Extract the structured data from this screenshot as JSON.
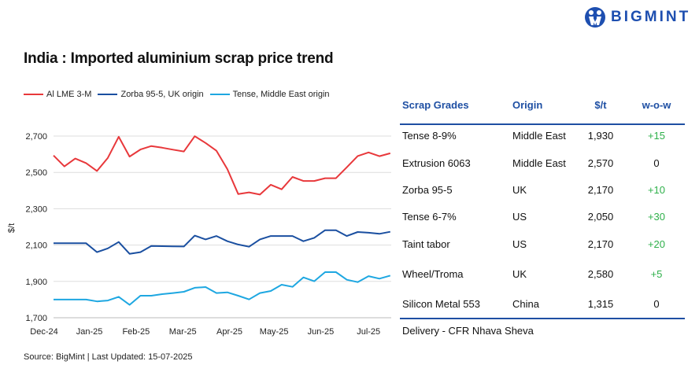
{
  "logo": {
    "text": "BIGMINT",
    "color": "#1e4fb0"
  },
  "title": "India : Imported aluminium scrap price trend",
  "chart_data": {
    "type": "line",
    "ylabel": "$/t",
    "xlabel": "",
    "ylim": [
      1700,
      2700
    ],
    "y_ticks": [
      "1,700",
      "1,900",
      "2,100",
      "2,300",
      "2,500",
      "2,700"
    ],
    "x_ticks": [
      "Dec-24",
      "Jan-25",
      "Feb-25",
      "Mar-25",
      "Apr-25",
      "May-25",
      "Jun-25",
      "Jul-25"
    ],
    "grid": "horizontal",
    "legend": "top-left",
    "series": [
      {
        "name": "Al LME 3-M",
        "color": "#e8383b",
        "values": [
          2593,
          2533,
          2576,
          2551,
          2508,
          2580,
          2696,
          2587,
          2626,
          2645,
          2636,
          2625,
          2615,
          2699,
          2662,
          2619,
          2518,
          2381,
          2390,
          2378,
          2432,
          2407,
          2475,
          2453,
          2453,
          2468,
          2468,
          2528,
          2590,
          2610,
          2589,
          2605
        ]
      },
      {
        "name": "Zorba 95-5, UK origin",
        "color": "#1a4fa0",
        "values": [
          2110,
          2110,
          2110,
          2110,
          2061,
          2082,
          2117,
          2052,
          2061,
          2095,
          2094,
          2093,
          2092,
          2152,
          2131,
          2150,
          2121,
          2103,
          2091,
          2131,
          2150,
          2150,
          2150,
          2121,
          2140,
          2182,
          2182,
          2150,
          2172,
          2168,
          2162,
          2173
        ]
      },
      {
        "name": "Tense, Middle East origin",
        "color": "#1ea7e1",
        "values": [
          1800,
          1800,
          1800,
          1800,
          1790,
          1795,
          1815,
          1771,
          1821,
          1821,
          1830,
          1836,
          1843,
          1865,
          1869,
          1836,
          1840,
          1821,
          1801,
          1836,
          1847,
          1882,
          1870,
          1922,
          1901,
          1951,
          1951,
          1909,
          1896,
          1929,
          1915,
          1932
        ]
      }
    ]
  },
  "table": {
    "headers": [
      "Scrap Grades",
      "Origin",
      "$/t",
      "w-o-w"
    ],
    "rows": [
      [
        "Tense 8-9%",
        "Middle East",
        "1,930",
        "+15"
      ],
      [
        "Extrusion 6063",
        "Middle East",
        "2,570",
        "0"
      ],
      [
        "Zorba 95-5",
        "UK",
        "2,170",
        "+10"
      ],
      [
        "Tense 6-7%",
        "US",
        "2,050",
        "+30"
      ],
      [
        "Taint tabor",
        "US",
        "2,170",
        "+20"
      ],
      [
        "Wheel/Troma",
        "UK",
        "2,580",
        "+5"
      ],
      [
        "Silicon Metal 553",
        "China",
        "1,315",
        "0"
      ]
    ],
    "footnote": "Delivery - CFR Nhava Sheva",
    "positive_color": "#2eb04a",
    "header_color": "#1e4fa3"
  },
  "source": "Source: BigMint | Last Updated: 15-07-2025"
}
